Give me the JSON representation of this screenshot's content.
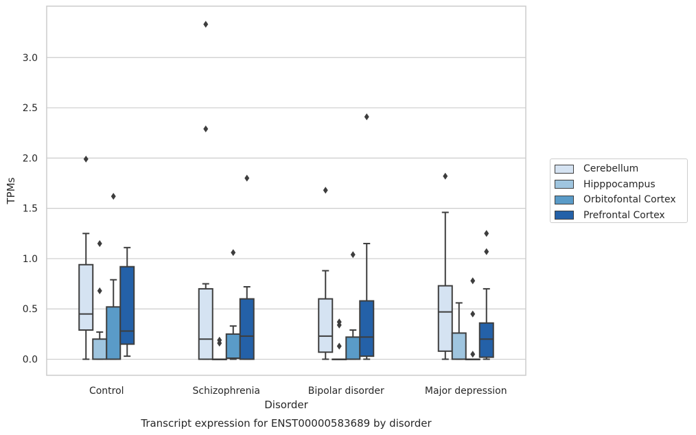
{
  "chart_data": {
    "type": "box",
    "title": "Transcript expression for ENST00000583689 by disorder",
    "xlabel": "Disorder",
    "ylabel": "TPMs",
    "ylim": [
      -0.16,
      3.51
    ],
    "yticks": [
      0.0,
      0.5,
      1.0,
      1.5,
      2.0,
      2.5,
      3.0
    ],
    "ytick_labels": [
      "0.0",
      "0.5",
      "1.0",
      "1.5",
      "2.0",
      "2.5",
      "3.0"
    ],
    "grid": "horizontal",
    "legend_position": "right",
    "categories": [
      "Control",
      "Schizophrenia",
      "Bipolar disorder",
      "Major depression"
    ],
    "series": [
      {
        "name": "Cerebellum",
        "color": "#d5e3f2",
        "boxes": [
          {
            "whislo": 0.0,
            "q1": 0.29,
            "med": 0.45,
            "q3": 0.94,
            "whishi": 1.25,
            "fliers": [
              1.99
            ]
          },
          {
            "whislo": 0.0,
            "q1": 0.0,
            "med": 0.2,
            "q3": 0.7,
            "whishi": 0.75,
            "fliers": [
              2.29,
              3.33
            ]
          },
          {
            "whislo": 0.0,
            "q1": 0.07,
            "med": 0.23,
            "q3": 0.6,
            "whishi": 0.88,
            "fliers": [
              1.68
            ]
          },
          {
            "whislo": 0.0,
            "q1": 0.08,
            "med": 0.47,
            "q3": 0.73,
            "whishi": 1.46,
            "fliers": [
              1.82
            ]
          }
        ]
      },
      {
        "name": "Hipppocampus",
        "color": "#9fc5df",
        "boxes": [
          {
            "whislo": 0.0,
            "q1": 0.0,
            "med": 0.0,
            "q3": 0.2,
            "whishi": 0.27,
            "fliers": [
              0.68,
              1.15
            ]
          },
          {
            "whislo": 0.0,
            "q1": 0.0,
            "med": 0.0,
            "q3": 0.0,
            "whishi": 0.0,
            "fliers": [
              0.16,
              0.19
            ]
          },
          {
            "whislo": 0.0,
            "q1": 0.0,
            "med": 0.0,
            "q3": 0.0,
            "whishi": 0.0,
            "fliers": [
              0.13,
              0.34,
              0.37
            ]
          },
          {
            "whislo": 0.0,
            "q1": 0.0,
            "med": 0.0,
            "q3": 0.26,
            "whishi": 0.56,
            "fliers": []
          }
        ]
      },
      {
        "name": "Orbitofontal Cortex",
        "color": "#5a9bc8",
        "boxes": [
          {
            "whislo": 0.0,
            "q1": 0.0,
            "med": 0.0,
            "q3": 0.52,
            "whishi": 0.79,
            "fliers": [
              1.62
            ]
          },
          {
            "whislo": 0.0,
            "q1": 0.01,
            "med": 0.01,
            "q3": 0.25,
            "whishi": 0.33,
            "fliers": [
              1.06
            ]
          },
          {
            "whislo": 0.0,
            "q1": 0.0,
            "med": 0.0,
            "q3": 0.22,
            "whishi": 0.29,
            "fliers": [
              1.04
            ]
          },
          {
            "whislo": 0.0,
            "q1": 0.0,
            "med": 0.0,
            "q3": 0.0,
            "whishi": 0.0,
            "fliers": [
              0.05,
              0.45,
              0.78
            ]
          }
        ]
      },
      {
        "name": "Prefrontal Cortex",
        "color": "#2461a8",
        "boxes": [
          {
            "whislo": 0.03,
            "q1": 0.15,
            "med": 0.28,
            "q3": 0.92,
            "whishi": 1.11,
            "fliers": []
          },
          {
            "whislo": 0.0,
            "q1": 0.0,
            "med": 0.23,
            "q3": 0.6,
            "whishi": 0.72,
            "fliers": [
              1.8
            ]
          },
          {
            "whislo": 0.0,
            "q1": 0.03,
            "med": 0.22,
            "q3": 0.58,
            "whishi": 1.15,
            "fliers": [
              2.41
            ]
          },
          {
            "whislo": 0.0,
            "q1": 0.02,
            "med": 0.2,
            "q3": 0.36,
            "whishi": 0.7,
            "fliers": [
              1.07,
              1.25
            ]
          }
        ]
      }
    ]
  }
}
